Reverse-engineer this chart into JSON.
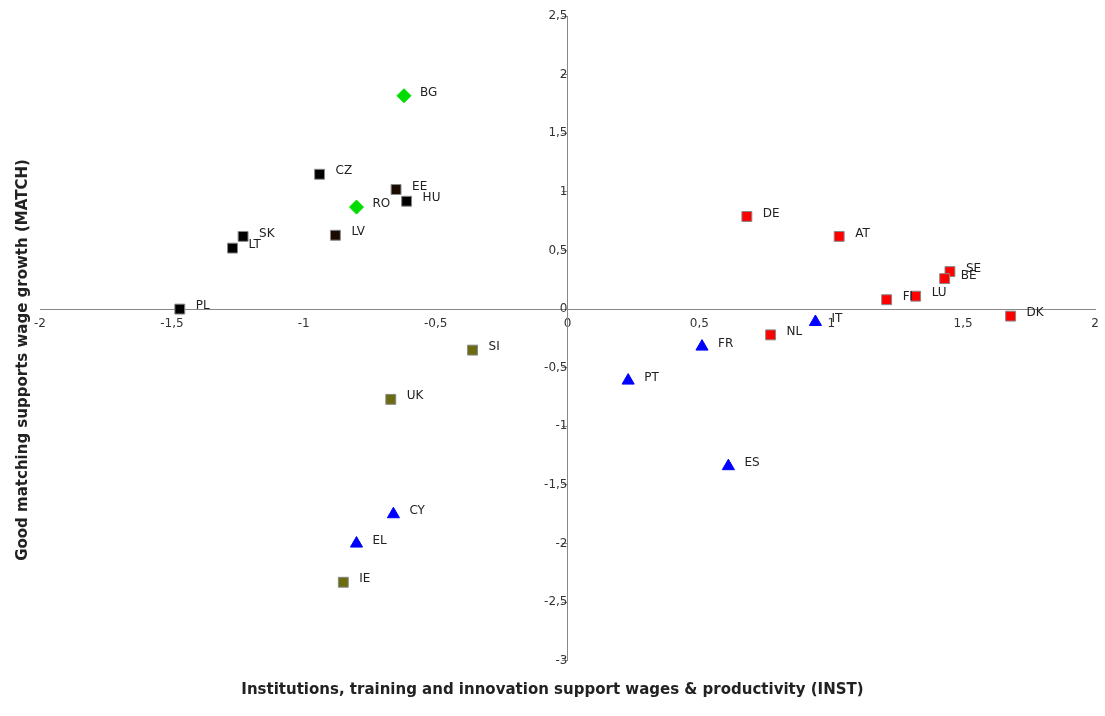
{
  "chart_data": {
    "type": "scatter",
    "xlabel": "Institutions, training and innovation support wages & productivity (INST)",
    "ylabel": "Good matching supports wage growth (MATCH)",
    "xlim": [
      -2,
      2
    ],
    "xticks": [
      -2,
      {
        "value": -1.5,
        "label": "-1,5"
      },
      -1,
      {
        "value": -0.5,
        "label": "-0,5"
      },
      0,
      {
        "value": 0.5,
        "label": "0,5"
      },
      1,
      {
        "value": 1.5,
        "label": "1,5"
      },
      2
    ],
    "ylim": [
      -3,
      2.5
    ],
    "yticks": [
      -3,
      {
        "value": -2.5,
        "label": "-2,5"
      },
      -2,
      {
        "value": -1.5,
        "label": "-1,5"
      },
      -1,
      {
        "value": -0.5,
        "label": "-0,5"
      },
      0,
      {
        "value": 0.5,
        "label": "0,5"
      },
      1,
      {
        "value": 1.5,
        "label": "1,5"
      },
      2,
      {
        "value": 2.5,
        "label": "2,5"
      }
    ],
    "grid": false,
    "legend": false,
    "series": [
      {
        "color": "#00dd00",
        "marker": "diamond",
        "x": [
          -0.62,
          -0.8
        ],
        "values": [
          1.82,
          0.87
        ]
      },
      {
        "color": "#000000",
        "marker": "square",
        "x": [
          -0.94,
          -0.61,
          -1.23,
          -1.27,
          -1.47
        ],
        "values": [
          1.15,
          0.92,
          0.62,
          0.52,
          0
        ]
      },
      {
        "color": "#1a0a00",
        "marker": "square",
        "x": [
          -0.65,
          -0.88
        ],
        "values": [
          1.02,
          0.63
        ]
      },
      {
        "color": "#6b6b10",
        "marker": "square",
        "x": [
          -0.36,
          -0.67,
          -0.85
        ],
        "values": [
          -0.35,
          -0.77,
          -2.33
        ]
      },
      {
        "color": "#0000ff",
        "marker": "triangle",
        "x": [
          0.94,
          0.51,
          0.23,
          0.61,
          -0.66,
          -0.8
        ],
        "values": [
          -0.11,
          -0.32,
          -0.61,
          -1.34,
          -1.75,
          -2.0
        ]
      },
      {
        "color": "#ff0000",
        "marker": "square",
        "x": [
          0.68,
          1.03,
          1.45,
          1.43,
          1.32,
          1.21,
          1.68,
          0.77
        ],
        "values": [
          0.79,
          0.62,
          0.32,
          0.26,
          0.11,
          0.08,
          -0.06,
          -0.22
        ]
      }
    ],
    "annotations": [
      {
        "text": "BG",
        "x": -0.62,
        "y": 1.82
      },
      {
        "text": "RO",
        "x": -0.8,
        "y": 0.87
      },
      {
        "text": "CZ",
        "x": -0.94,
        "y": 1.15
      },
      {
        "text": "HU",
        "x": -0.61,
        "y": 0.92
      },
      {
        "text": "SK",
        "x": -1.23,
        "y": 0.62
      },
      {
        "text": "LT",
        "x": -1.27,
        "y": 0.52
      },
      {
        "text": "PL",
        "x": -1.47,
        "y": 0
      },
      {
        "text": "EE",
        "x": -0.65,
        "y": 1.02
      },
      {
        "text": "LV",
        "x": -0.88,
        "y": 0.63
      },
      {
        "text": "SI",
        "x": -0.36,
        "y": -0.35
      },
      {
        "text": "UK",
        "x": -0.67,
        "y": -0.77
      },
      {
        "text": "IE",
        "x": -0.85,
        "y": -2.33
      },
      {
        "text": "IT",
        "x": 0.94,
        "y": -0.11
      },
      {
        "text": "FR",
        "x": 0.51,
        "y": -0.32
      },
      {
        "text": "PT",
        "x": 0.23,
        "y": -0.61
      },
      {
        "text": "ES",
        "x": 0.61,
        "y": -1.34
      },
      {
        "text": "CY",
        "x": -0.66,
        "y": -1.75
      },
      {
        "text": "EL",
        "x": -0.8,
        "y": -2.0
      },
      {
        "text": "DE",
        "x": 0.68,
        "y": 0.79
      },
      {
        "text": "AT",
        "x": 1.03,
        "y": 0.62
      },
      {
        "text": "SE",
        "x": 1.45,
        "y": 0.32
      },
      {
        "text": "BE",
        "x": 1.43,
        "y": 0.26
      },
      {
        "text": "LU",
        "x": 1.32,
        "y": 0.11
      },
      {
        "text": "FI",
        "x": 1.21,
        "y": 0.08
      },
      {
        "text": "DK",
        "x": 1.68,
        "y": -0.06
      },
      {
        "text": "NL",
        "x": 0.77,
        "y": -0.22
      }
    ]
  }
}
